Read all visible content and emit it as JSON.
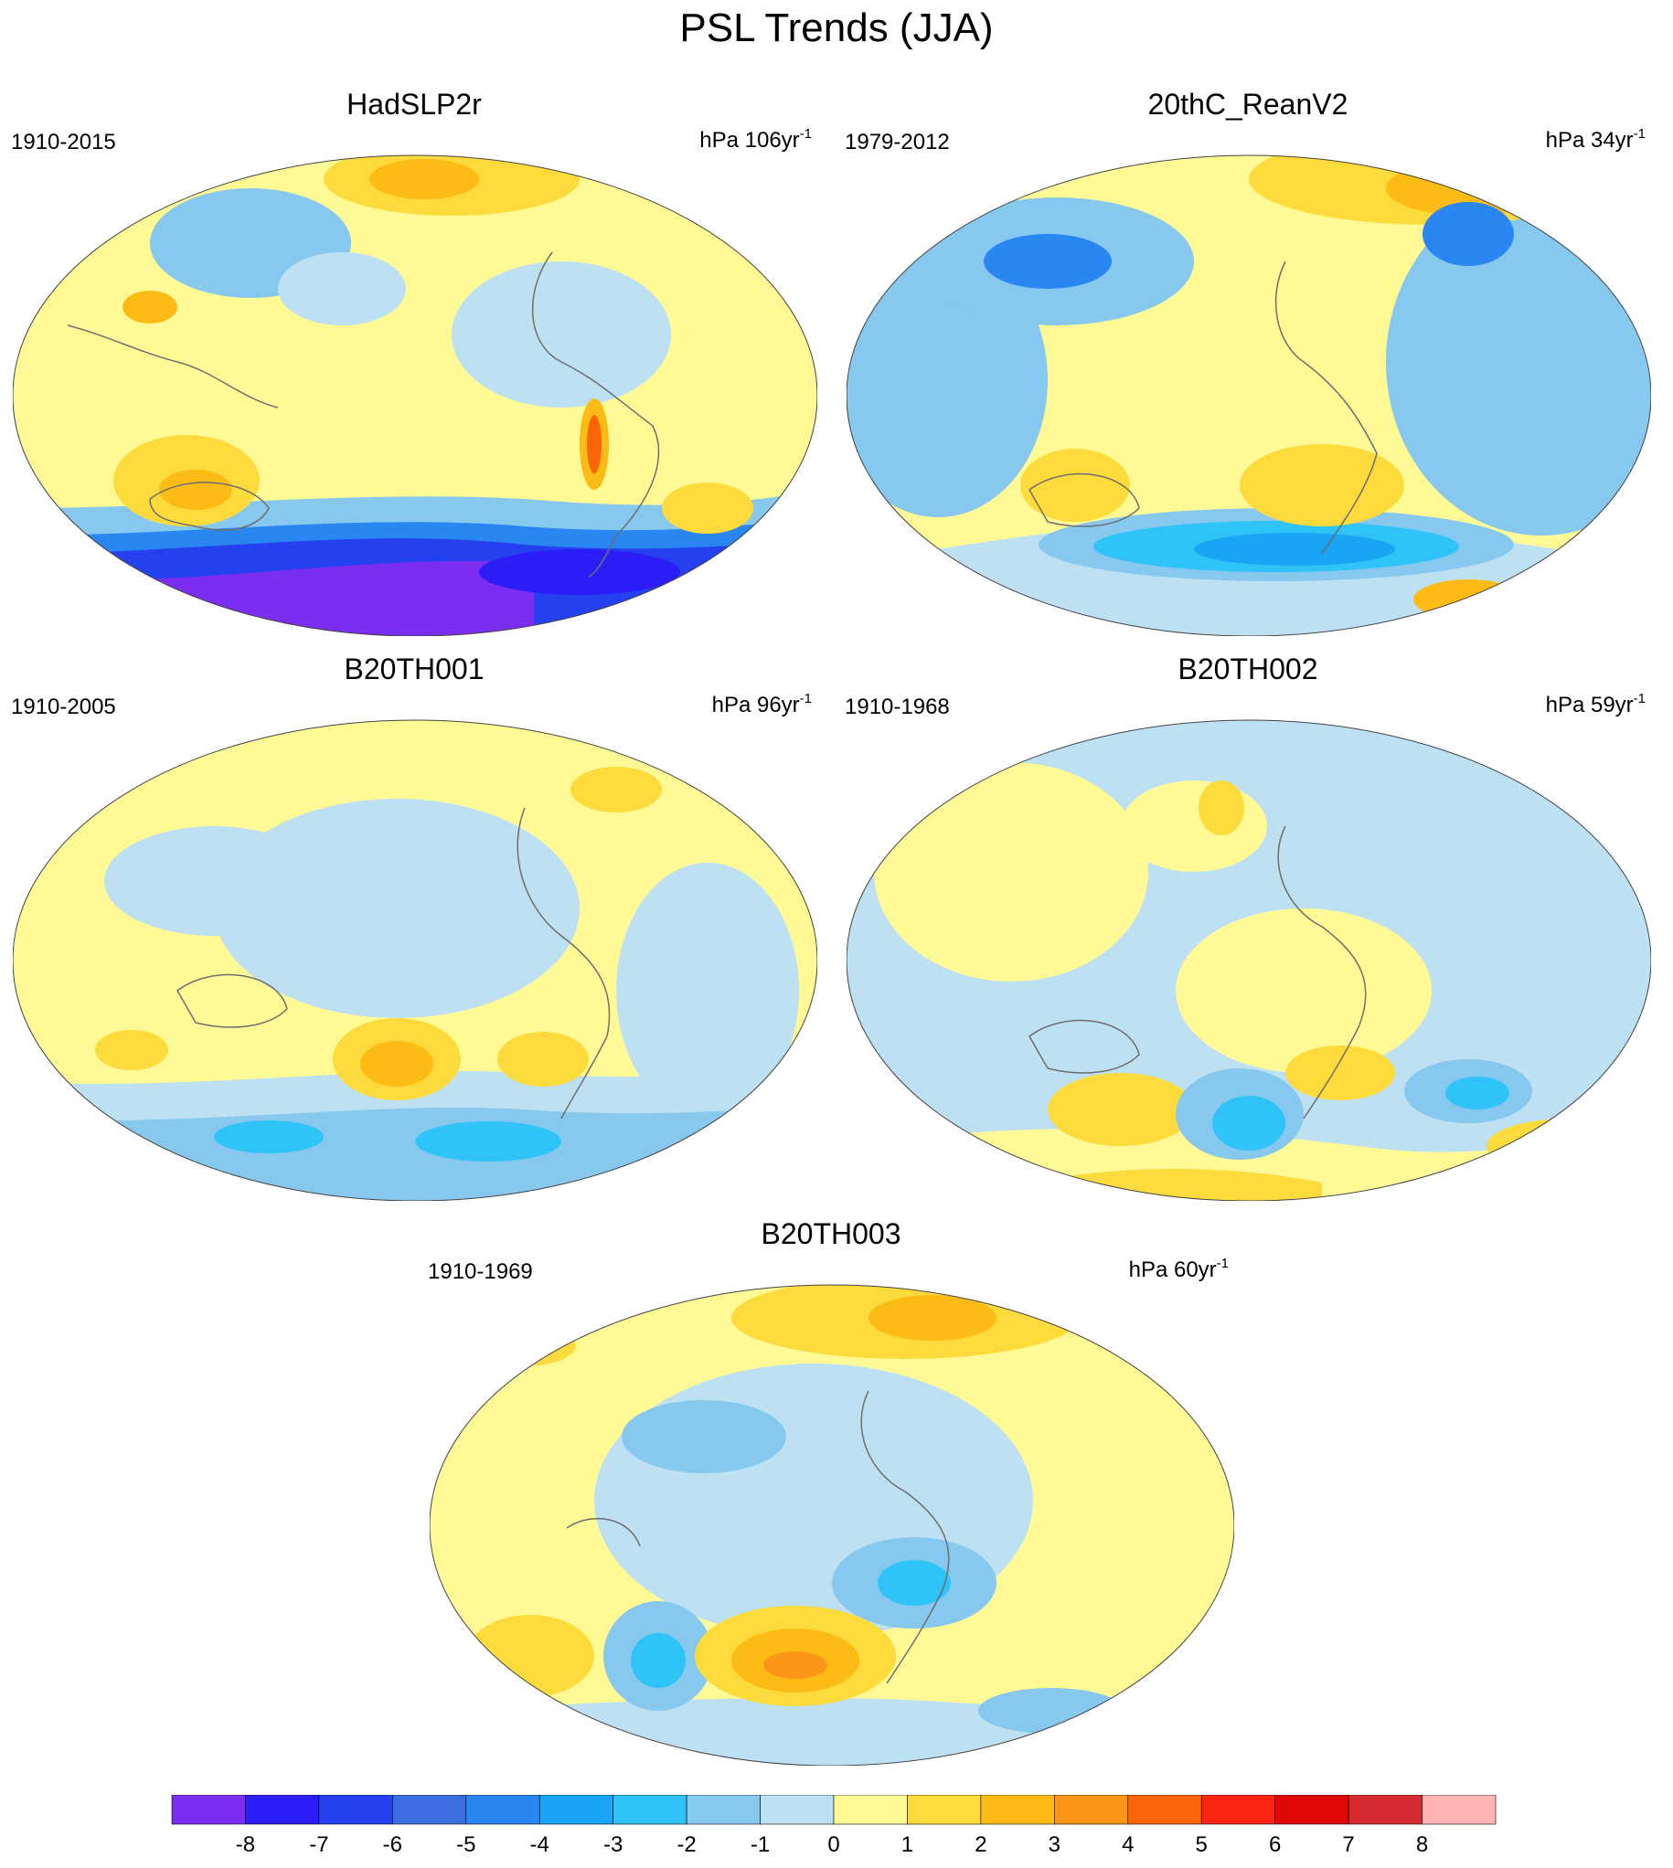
{
  "title": "PSL Trends (JJA)",
  "colors": {
    "levels": [
      "#7b2df0",
      "#2a1df5",
      "#2540ee",
      "#3b6fe0",
      "#2a86f0",
      "#19a4f4",
      "#2fc3f8",
      "#86c8ee",
      "#bde0f3",
      "#fffa96",
      "#fedb3c",
      "#fdbb16",
      "#fb9618",
      "#fb6408",
      "#fb2412",
      "#e30808",
      "#d42c30",
      "#feb4b4"
    ],
    "land_outline": "#6e6e6e"
  },
  "panels": [
    {
      "name": "HadSLP2r",
      "years": "1910-2015",
      "units_prefix": "hPa 106yr",
      "units_exp": "-1"
    },
    {
      "name": "20thC_ReanV2",
      "years": "1979-2012",
      "units_prefix": "hPa 34yr",
      "units_exp": "-1"
    },
    {
      "name": "B20TH001",
      "years": "1910-2005",
      "units_prefix": "hPa 96yr",
      "units_exp": "-1"
    },
    {
      "name": "B20TH002",
      "years": "1910-1968",
      "units_prefix": "hPa 59yr",
      "units_exp": "-1"
    },
    {
      "name": "B20TH003",
      "years": "1910-1969",
      "units_prefix": "hPa 60yr",
      "units_exp": "-1"
    }
  ],
  "colorbar": {
    "labels": [
      "-8",
      "-7",
      "-6",
      "-5",
      "-4",
      "-3",
      "-2",
      "-1",
      "0",
      "1",
      "2",
      "3",
      "4",
      "5",
      "6",
      "7",
      "8"
    ]
  }
}
